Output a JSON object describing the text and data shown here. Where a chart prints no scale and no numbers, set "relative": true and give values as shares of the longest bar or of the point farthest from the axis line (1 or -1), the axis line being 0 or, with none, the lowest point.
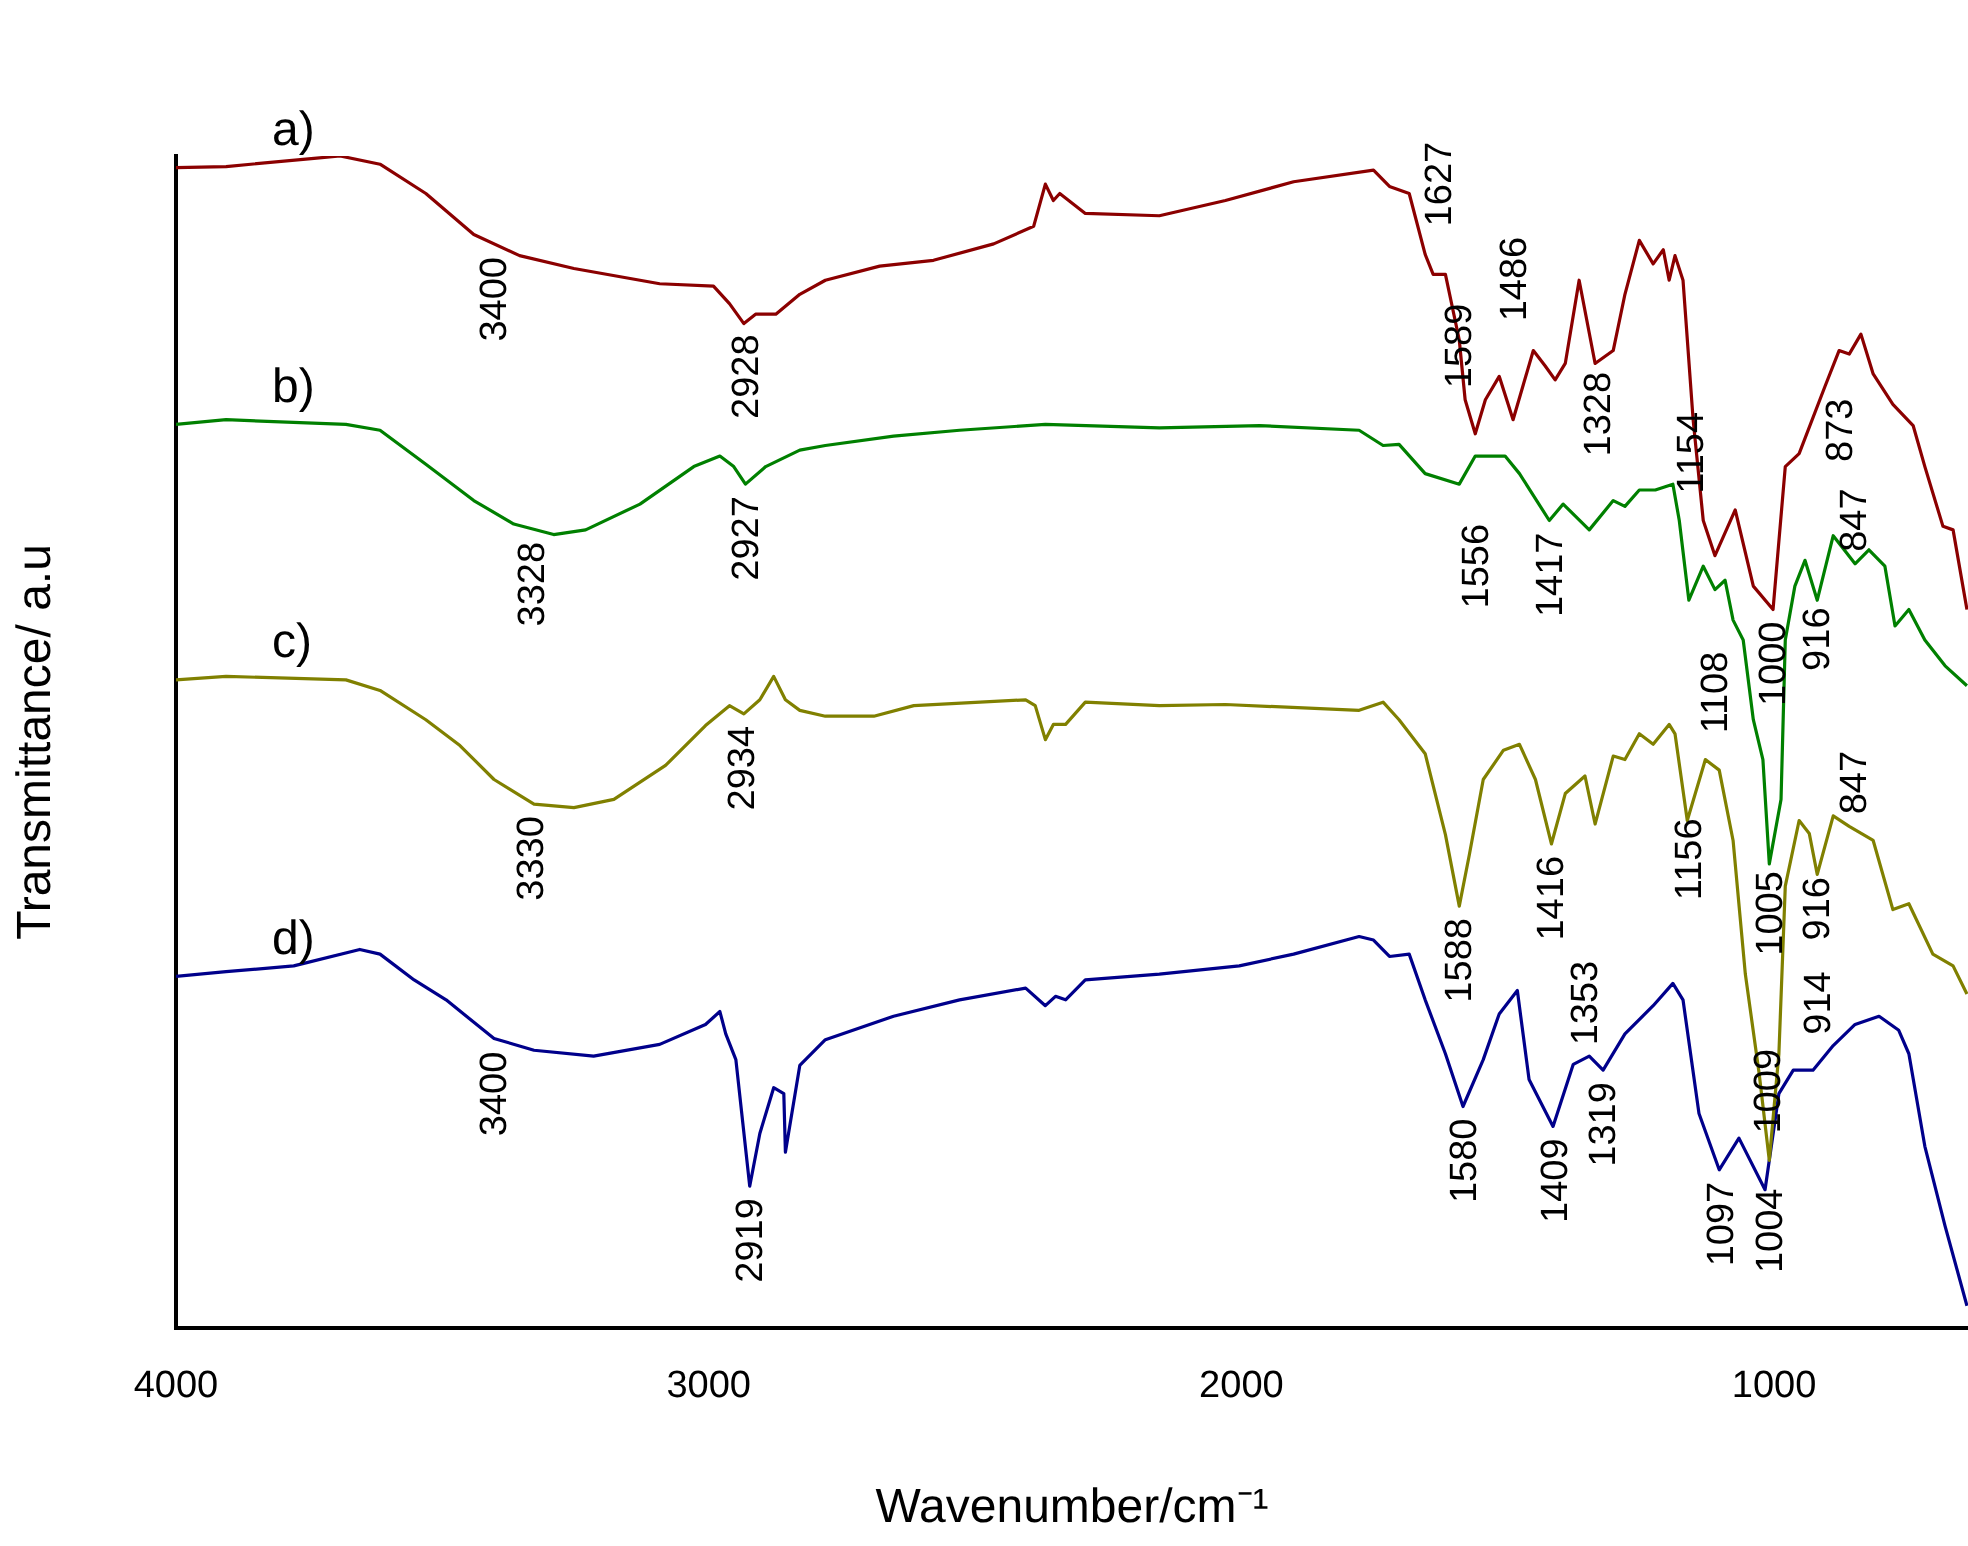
{
  "chart_data": {
    "type": "line",
    "relative": true,
    "xlabel": "Wavenumber/cm⁻¹",
    "ylabel": "Transmittance/ a.u",
    "xlim": [
      4000,
      636
    ],
    "xticks": [
      4000,
      3000,
      2000,
      1000
    ],
    "series": [
      {
        "name": "a)",
        "color": "#8b0000",
        "x": [
          4000,
          3906,
          3741,
          3692,
          3617,
          3531,
          3441,
          3355,
          3253,
          3092,
          2991,
          2961,
          2934,
          2912,
          2874,
          2829,
          2781,
          2679,
          2578,
          2465,
          2390,
          2368,
          2353,
          2341,
          2293,
          2154,
          2030,
          1902,
          1752,
          1722,
          1685,
          1655,
          1640,
          1617,
          1591,
          1580,
          1561,
          1542,
          1516,
          1490,
          1452,
          1430,
          1411,
          1392,
          1366,
          1336,
          1302,
          1280,
          1253,
          1227,
          1208,
          1197,
          1186,
          1171,
          1152,
          1133,
          1111,
          1073,
          1039,
          1002,
          979,
          953,
          904,
          878,
          859,
          837,
          814,
          777,
          739,
          717,
          683,
          664,
          638
        ],
        "values": [
          0.99,
          0.991,
          0.998,
          1.0,
          0.993,
          0.968,
          0.933,
          0.915,
          0.904,
          0.891,
          0.889,
          0.874,
          0.857,
          0.865,
          0.865,
          0.882,
          0.894,
          0.906,
          0.911,
          0.925,
          0.94,
          0.976,
          0.962,
          0.968,
          0.951,
          0.949,
          0.962,
          0.978,
          0.988,
          0.974,
          0.968,
          0.916,
          0.899,
          0.899,
          0.843,
          0.792,
          0.763,
          0.792,
          0.812,
          0.775,
          0.834,
          0.821,
          0.809,
          0.823,
          0.894,
          0.823,
          0.834,
          0.882,
          0.928,
          0.908,
          0.92,
          0.894,
          0.915,
          0.894,
          0.775,
          0.689,
          0.659,
          0.698,
          0.633,
          0.613,
          0.735,
          0.746,
          0.804,
          0.834,
          0.831,
          0.848,
          0.814,
          0.788,
          0.77,
          0.735,
          0.684,
          0.681,
          0.613
        ]
      },
      {
        "name": "b)",
        "color": "#008000",
        "x": [
          4000,
          3906,
          3681,
          3617,
          3531,
          3441,
          3366,
          3291,
          3231,
          3129,
          3028,
          2979,
          2953,
          2931,
          2893,
          2829,
          2781,
          2653,
          2529,
          2368,
          2154,
          1966,
          1779,
          1734,
          1704,
          1655,
          1591,
          1561,
          1505,
          1478,
          1422,
          1396,
          1347,
          1302,
          1280,
          1253,
          1223,
          1190,
          1178,
          1160,
          1133,
          1111,
          1092,
          1077,
          1058,
          1039,
          1021,
          1009,
          987,
          979,
          961,
          942,
          919,
          889,
          848,
          822,
          792,
          773,
          747,
          717,
          679,
          638
        ],
        "values": [
          0.771,
          0.775,
          0.771,
          0.766,
          0.737,
          0.706,
          0.686,
          0.677,
          0.681,
          0.703,
          0.735,
          0.744,
          0.735,
          0.72,
          0.735,
          0.749,
          0.753,
          0.761,
          0.766,
          0.771,
          0.768,
          0.77,
          0.766,
          0.753,
          0.754,
          0.729,
          0.72,
          0.744,
          0.744,
          0.729,
          0.689,
          0.703,
          0.681,
          0.706,
          0.701,
          0.715,
          0.715,
          0.72,
          0.689,
          0.621,
          0.65,
          0.63,
          0.638,
          0.604,
          0.587,
          0.519,
          0.485,
          0.396,
          0.451,
          0.587,
          0.633,
          0.655,
          0.621,
          0.676,
          0.652,
          0.664,
          0.65,
          0.599,
          0.613,
          0.587,
          0.565,
          0.548
        ]
      },
      {
        "name": "c)",
        "color": "#808000",
        "x": [
          4000,
          3906,
          3681,
          3617,
          3531,
          3467,
          3403,
          3328,
          3253,
          3178,
          3081,
          3006,
          2961,
          2934,
          2904,
          2878,
          2856,
          2829,
          2781,
          2690,
          2615,
          2405,
          2387,
          2368,
          2353,
          2330,
          2293,
          2154,
          2030,
          1779,
          1734,
          1704,
          1655,
          1617,
          1591,
          1572,
          1546,
          1508,
          1478,
          1448,
          1418,
          1392,
          1355,
          1336,
          1302,
          1280,
          1253,
          1227,
          1197,
          1186,
          1163,
          1129,
          1103,
          1077,
          1054,
          1028,
          1009,
          991,
          979,
          953,
          934,
          919,
          889,
          859,
          814,
          777,
          747,
          702,
          664,
          638
        ],
        "values": [
          0.553,
          0.556,
          0.553,
          0.544,
          0.519,
          0.497,
          0.468,
          0.447,
          0.444,
          0.451,
          0.48,
          0.514,
          0.531,
          0.524,
          0.536,
          0.556,
          0.536,
          0.527,
          0.522,
          0.522,
          0.531,
          0.536,
          0.531,
          0.502,
          0.515,
          0.515,
          0.534,
          0.531,
          0.532,
          0.527,
          0.534,
          0.519,
          0.49,
          0.421,
          0.36,
          0.404,
          0.468,
          0.493,
          0.498,
          0.468,
          0.413,
          0.456,
          0.471,
          0.43,
          0.488,
          0.485,
          0.507,
          0.498,
          0.515,
          0.507,
          0.433,
          0.485,
          0.476,
          0.416,
          0.302,
          0.217,
          0.143,
          0.234,
          0.377,
          0.433,
          0.422,
          0.387,
          0.437,
          0.428,
          0.416,
          0.357,
          0.362,
          0.319,
          0.309,
          0.285
        ]
      },
      {
        "name": "d)",
        "color": "#00008b",
        "x": [
          4000,
          3906,
          3779,
          3655,
          3617,
          3553,
          3493,
          3403,
          3328,
          3216,
          3092,
          3006,
          2979,
          2968,
          2949,
          2923,
          2904,
          2878,
          2859,
          2856,
          2829,
          2781,
          2653,
          2529,
          2405,
          2368,
          2349,
          2330,
          2293,
          2154,
          2004,
          1902,
          1779,
          1752,
          1722,
          1685,
          1655,
          1617,
          1584,
          1546,
          1516,
          1482,
          1460,
          1415,
          1377,
          1347,
          1321,
          1280,
          1227,
          1190,
          1171,
          1141,
          1103,
          1066,
          1017,
          991,
          964,
          927,
          889,
          848,
          803,
          766,
          747,
          717,
          679,
          638
        ],
        "values": [
          0.3,
          0.304,
          0.309,
          0.323,
          0.319,
          0.297,
          0.28,
          0.247,
          0.237,
          0.232,
          0.242,
          0.259,
          0.27,
          0.251,
          0.229,
          0.121,
          0.166,
          0.205,
          0.2,
          0.15,
          0.224,
          0.246,
          0.266,
          0.28,
          0.29,
          0.275,
          0.283,
          0.28,
          0.297,
          0.302,
          0.309,
          0.319,
          0.334,
          0.331,
          0.317,
          0.319,
          0.28,
          0.234,
          0.189,
          0.229,
          0.268,
          0.288,
          0.212,
          0.172,
          0.225,
          0.232,
          0.22,
          0.251,
          0.275,
          0.294,
          0.28,
          0.183,
          0.135,
          0.162,
          0.118,
          0.2,
          0.22,
          0.22,
          0.241,
          0.259,
          0.266,
          0.254,
          0.234,
          0.155,
          0.087,
          0.019
        ]
      }
    ],
    "annotations": [
      {
        "text": "3400",
        "x": 3400,
        "y": 0.924
      },
      {
        "text": "2928",
        "x": 2928,
        "y": 0.858
      },
      {
        "text": "1627",
        "x": 1627,
        "y": 0.899
      },
      {
        "text": "1556",
        "x": 1556,
        "y": 0.768
      },
      {
        "text": "1486",
        "x": 1486,
        "y": 0.777
      },
      {
        "text": "1328",
        "x": 1328,
        "y": 0.826
      },
      {
        "text": "1108",
        "x": 1108,
        "y": 0.659
      },
      {
        "text": "1000",
        "x": 1000,
        "y": 0.613
      },
      {
        "text": "873",
        "x": 873,
        "y": 0.834
      },
      {
        "text": "3328",
        "x": 3328,
        "y": 0.681
      },
      {
        "text": "2927",
        "x": 2927,
        "y": 0.72
      },
      {
        "text": "1589",
        "x": 1589,
        "y": 0.72
      },
      {
        "text": "1417",
        "x": 1417,
        "y": 0.689
      },
      {
        "text": "1154",
        "x": 1154,
        "y": 0.63
      },
      {
        "text": "1005",
        "x": 1005,
        "y": 0.4
      },
      {
        "text": "916",
        "x": 916,
        "y": 0.625
      },
      {
        "text": "847",
        "x": 847,
        "y": 0.652
      },
      {
        "text": "3330",
        "x": 3330,
        "y": 0.447
      },
      {
        "text": "2934",
        "x": 2934,
        "y": 0.524
      },
      {
        "text": "1588",
        "x": 1588,
        "y": 0.36
      },
      {
        "text": "1416",
        "x": 1416,
        "y": 0.413
      },
      {
        "text": "1156",
        "x": 1156,
        "y": 0.445
      },
      {
        "text": "1004",
        "x": 1004,
        "y": 0.16
      },
      {
        "text": "916",
        "x": 916,
        "y": 0.395
      },
      {
        "text": "847",
        "x": 847,
        "y": 0.428
      },
      {
        "text": "3400",
        "x": 3400,
        "y": 0.246
      },
      {
        "text": "2919",
        "x": 2919,
        "y": 0.121
      },
      {
        "text": "1580",
        "x": 1580,
        "y": 0.189
      },
      {
        "text": "1409",
        "x": 1409,
        "y": 0.172
      },
      {
        "text": "1353",
        "x": 1353,
        "y": 0.231
      },
      {
        "text": "1319",
        "x": 1319,
        "y": 0.22
      },
      {
        "text": "1097",
        "x": 1097,
        "y": 0.135
      },
      {
        "text": "1009",
        "x": 1009,
        "y": 0.125
      },
      {
        "text": "914",
        "x": 914,
        "y": 0.24
      }
    ]
  }
}
